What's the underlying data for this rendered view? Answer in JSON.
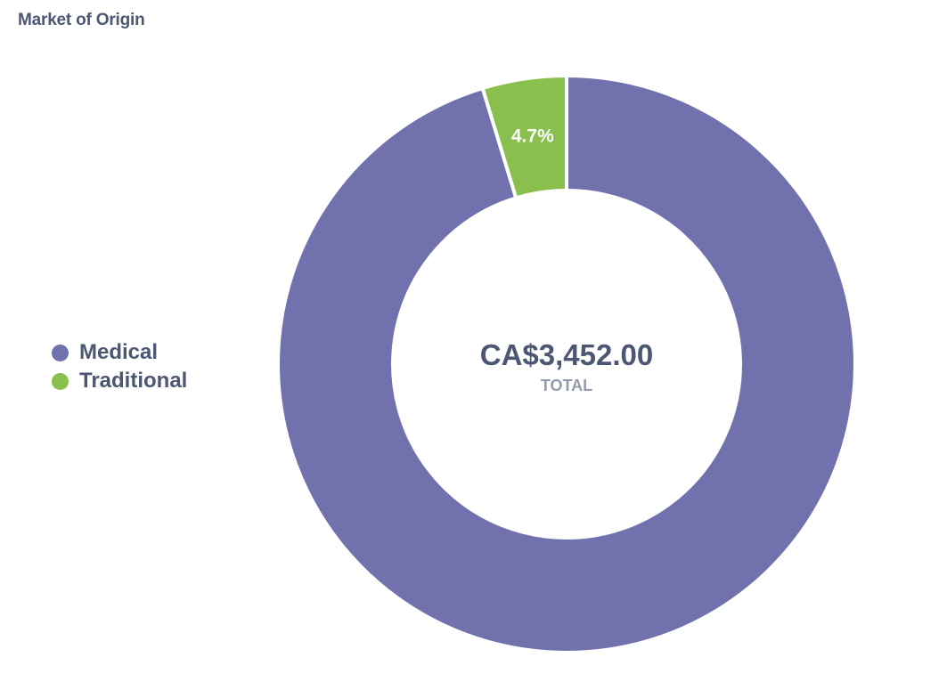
{
  "card": {
    "title": "Market of Origin"
  },
  "chart_data": {
    "type": "pie",
    "variant": "donut",
    "title": "Market of Origin",
    "categories": [
      "Medical",
      "Traditional"
    ],
    "values": [
      95.3,
      4.7
    ],
    "unit": "%",
    "slice_labels": [
      "",
      "4.7%"
    ],
    "colors": [
      "#7172ad",
      "#88bf4d"
    ],
    "center": {
      "value": "CA$3,452.00",
      "label": "TOTAL"
    },
    "legend": {
      "placement": "left",
      "items": [
        {
          "label": "Medical",
          "color": "#7172ad"
        },
        {
          "label": "Traditional",
          "color": "#88bf4d"
        }
      ]
    }
  }
}
